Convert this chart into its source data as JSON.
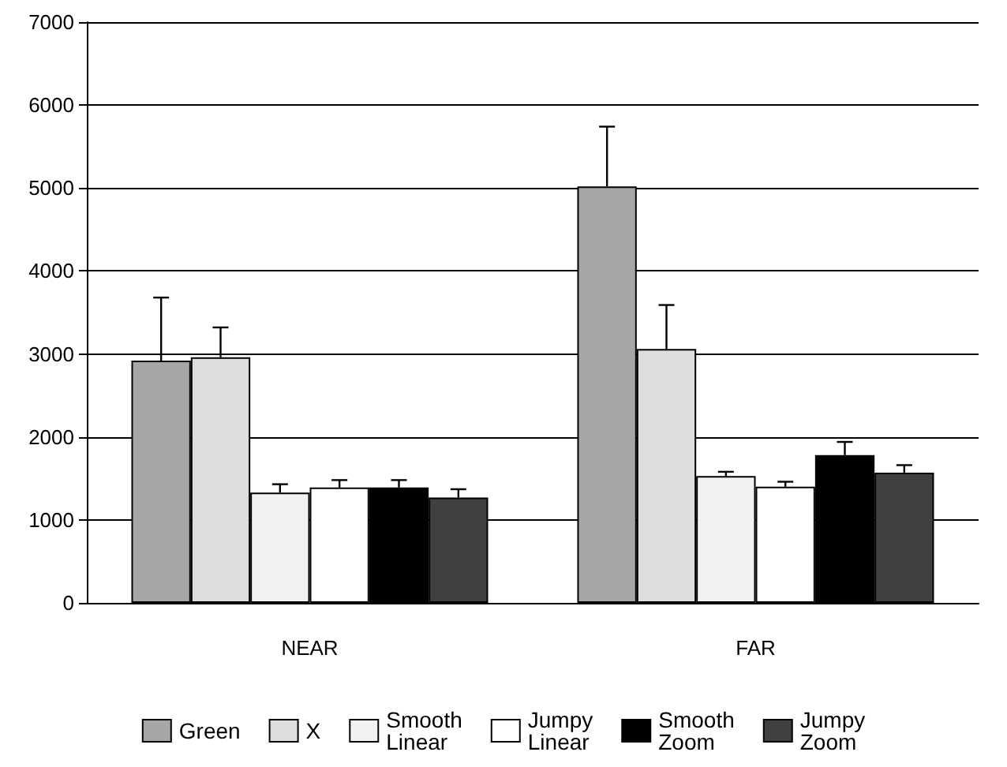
{
  "chart_data": {
    "type": "bar",
    "categories": [
      "NEAR",
      "FAR"
    ],
    "series": [
      {
        "name": "Green",
        "color": "#a6a6a6",
        "values": [
          2920,
          5020
        ],
        "errors": [
          [
            2920,
            3680
          ],
          [
            5020,
            5740
          ]
        ]
      },
      {
        "name": "X",
        "color": "#dddddd",
        "values": [
          2960,
          3060
        ],
        "errors": [
          [
            2960,
            3320
          ],
          [
            3060,
            3590
          ]
        ]
      },
      {
        "name": "Smooth Linear",
        "color": "#f2f2f2",
        "values": [
          1330,
          1530
        ],
        "errors": [
          [
            1330,
            1430
          ],
          [
            1530,
            1580
          ]
        ]
      },
      {
        "name": "Jumpy Linear",
        "color": "#ffffff",
        "values": [
          1390,
          1400
        ],
        "errors": [
          [
            1390,
            1480
          ],
          [
            1400,
            1460
          ]
        ]
      },
      {
        "name": "Smooth Zoom",
        "color": "#000000",
        "values": [
          1390,
          1780
        ],
        "errors": [
          [
            1390,
            1480
          ],
          [
            1780,
            1940
          ]
        ]
      },
      {
        "name": "Jumpy Zoom",
        "color": "#404040",
        "values": [
          1270,
          1570
        ],
        "errors": [
          [
            1270,
            1370
          ],
          [
            1570,
            1660
          ]
        ]
      }
    ],
    "ylim": [
      0,
      7000
    ],
    "yticks": [
      0,
      1000,
      2000,
      3000,
      4000,
      5000,
      6000,
      7000
    ],
    "grid": "y",
    "legend": "bottom"
  }
}
